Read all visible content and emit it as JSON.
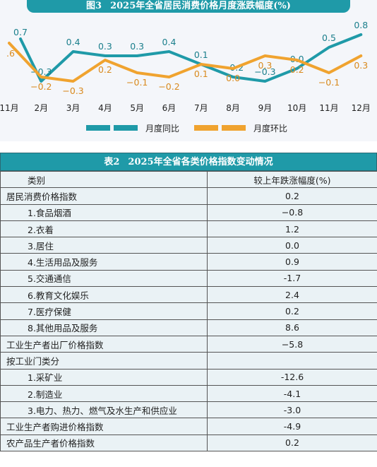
{
  "chart_data": {
    "type": "line",
    "title_prefix": "图3",
    "title": "2025年全省居民消费价格月度涨跌幅度(%)",
    "categories": [
      "11月",
      "2月",
      "3月",
      "4月",
      "5月",
      "6月",
      "7月",
      "8月",
      "9月",
      "10月",
      "11月",
      "12月"
    ],
    "series": [
      {
        "name": "月度同比",
        "color": "#1f9aa8",
        "values": [
          null,
          -0.3,
          0.4,
          0.3,
          0.3,
          0.4,
          0.1,
          -0.2,
          -0.3,
          0.0,
          0.5,
          0.8
        ],
        "labels": [
          "0.7",
          "−0.3",
          "0.4",
          "0.3",
          "0.3",
          "0.4",
          "0.1",
          "−0.2",
          "−0.3",
          "0.0",
          "0.5",
          "0.8"
        ],
        "partial_first_value": 0.7
      },
      {
        "name": "月度环比",
        "color": "#f0a32f",
        "values": [
          0.6,
          -0.2,
          -0.3,
          0.2,
          -0.1,
          -0.2,
          0.1,
          0.0,
          0.3,
          0.2,
          -0.1,
          0.3
        ],
        "labels": [
          ".6",
          "−0.2",
          "−0.3",
          "0.2",
          "−0.1",
          "−0.2",
          "0.1",
          "0.0",
          "0.3",
          "0.2",
          "−0.1",
          "0.3"
        ]
      }
    ],
    "legend_position": "bottom",
    "grid": false
  },
  "table": {
    "title_prefix": "表2",
    "title": "2025年全省各类价格指数变动情况",
    "headers": [
      "类别",
      "较上年跌涨幅度(%)"
    ],
    "rows": [
      {
        "category": "居民消费价格指数",
        "value": "0.2",
        "sub": false
      },
      {
        "category": "1.食品烟酒",
        "value": "−0.8",
        "sub": true
      },
      {
        "category": "2.衣着",
        "value": "1.2",
        "sub": true
      },
      {
        "category": "3.居住",
        "value": "0.0",
        "sub": true
      },
      {
        "category": "4.生活用品及服务",
        "value": "0.9",
        "sub": true
      },
      {
        "category": "5.交通通信",
        "value": "-1.7",
        "sub": true
      },
      {
        "category": "6.教育文化娱乐",
        "value": "2.4",
        "sub": true
      },
      {
        "category": "7.医疗保健",
        "value": "0.2",
        "sub": true
      },
      {
        "category": "8.其他用品及服务",
        "value": "8.6",
        "sub": true
      },
      {
        "category": "工业生产者出厂价格指数",
        "value": "−5.8",
        "sub": false
      },
      {
        "category": "按工业门类分",
        "value": "",
        "sub": false
      },
      {
        "category": "1.采矿业",
        "value": "-12.6",
        "sub": true
      },
      {
        "category": "2.制造业",
        "value": "-4.1",
        "sub": true
      },
      {
        "category": "3.电力、热力、燃气及水生产和供应业",
        "value": "-3.0",
        "sub": true
      },
      {
        "category": "工业生产者购进价格指数",
        "value": "-4.9",
        "sub": false
      },
      {
        "category": "农产品生产者价格指数",
        "value": "0.2",
        "sub": false
      }
    ]
  }
}
